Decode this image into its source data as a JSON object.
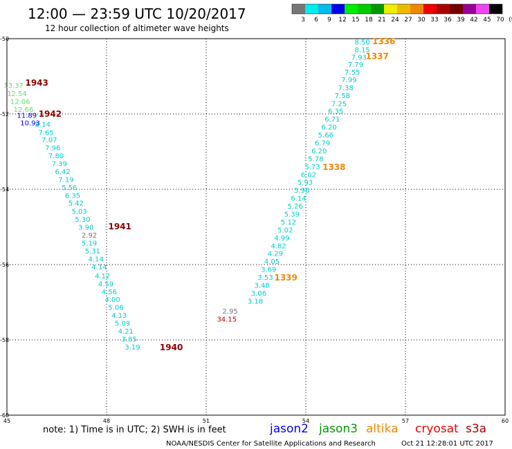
{
  "header": {
    "title": "12:00 — 23:59 UTC 10/20/2017",
    "subtitle": "12 hour collection of altimeter wave heights"
  },
  "colorbar": {
    "colors": [
      "#777777",
      "#00eeee",
      "#00bbee",
      "#0000ee",
      "#00ee00",
      "#00cc00",
      "#009900",
      "#eeee00",
      "#eebb00",
      "#ee8800",
      "#ee0000",
      "#aa0000",
      "#770000",
      "#990099",
      "#ee44ee",
      "#000000"
    ],
    "labels": [
      "3",
      "6",
      "9",
      "12",
      "15",
      "18",
      "21",
      "24",
      "27",
      "30",
      "33",
      "36",
      "39",
      "42",
      "45",
      "70",
      "(ft)"
    ]
  },
  "note": "note:  1) Time is in UTC; 2) SWH is in feet",
  "satellites": [
    {
      "label": "jason2",
      "color": "#0000ee"
    },
    {
      "label": "jason3",
      "color": "#009900"
    },
    {
      "label": "altika",
      "color": "#ee8800"
    },
    {
      "label": "cryosat",
      "color": "#ee0000"
    },
    {
      "label": "s3a",
      "color": "#aa0000"
    }
  ],
  "footer": {
    "credit": "NOAA/NESDIS Center for Satellite Applications and Research",
    "timestamp": "Oct 21 12:28:01 UTC 2017"
  },
  "chart_data": {
    "type": "scatter",
    "xlim": [
      45,
      60
    ],
    "ylim": [
      -60,
      -50
    ],
    "xticks": [
      "45",
      "48",
      "51",
      "54",
      "57",
      "60"
    ],
    "yticks": [
      "-50",
      "-52",
      "-54",
      "-56",
      "-58",
      "-60"
    ],
    "grid": true,
    "tracks": [
      {
        "color": "#00cccc",
        "points": [
          {
            "x": 46.08,
            "y": -52.28,
            "v": "8.14"
          },
          {
            "x": 46.18,
            "y": -52.5,
            "v": "7.65"
          },
          {
            "x": 46.28,
            "y": -52.7,
            "v": "7.07"
          },
          {
            "x": 46.38,
            "y": -52.91,
            "v": "7.96"
          },
          {
            "x": 46.48,
            "y": -53.12,
            "v": "7.80"
          },
          {
            "x": 46.58,
            "y": -53.33,
            "v": "7.39"
          },
          {
            "x": 46.68,
            "y": -53.54,
            "v": "6.42"
          },
          {
            "x": 46.78,
            "y": -53.75,
            "v": "7.19"
          },
          {
            "x": 46.88,
            "y": -53.96,
            "v": "5.56"
          },
          {
            "x": 46.98,
            "y": -54.17,
            "v": "6.35"
          },
          {
            "x": 47.08,
            "y": -54.38,
            "v": "5.42"
          },
          {
            "x": 47.18,
            "y": -54.6,
            "v": "5.03"
          },
          {
            "x": 47.28,
            "y": -54.81,
            "v": "5.30"
          },
          {
            "x": 47.38,
            "y": -55.02,
            "v": "3.90"
          },
          {
            "x": 47.48,
            "y": -55.44,
            "v": "5.19"
          },
          {
            "x": 47.58,
            "y": -55.65,
            "v": "5.31"
          },
          {
            "x": 47.68,
            "y": -55.86,
            "v": "4.14"
          },
          {
            "x": 47.78,
            "y": -56.07,
            "v": "4.14"
          },
          {
            "x": 47.88,
            "y": -56.31,
            "v": "4.12"
          },
          {
            "x": 47.98,
            "y": -56.52,
            "v": "4.59"
          },
          {
            "x": 48.08,
            "y": -56.73,
            "v": "4.56"
          },
          {
            "x": 48.18,
            "y": -56.94,
            "v": "4.00"
          },
          {
            "x": 48.28,
            "y": -57.15,
            "v": "5.06"
          },
          {
            "x": 48.38,
            "y": -57.36,
            "v": "4.13"
          },
          {
            "x": 48.48,
            "y": -57.57,
            "v": "5.09"
          },
          {
            "x": 48.58,
            "y": -57.78,
            "v": "4.21"
          },
          {
            "x": 48.68,
            "y": -57.99,
            "v": "3.85"
          },
          {
            "x": 48.78,
            "y": -58.2,
            "v": "3.19"
          }
        ]
      },
      {
        "color": "#00cccc",
        "points": [
          {
            "x": 55.7,
            "y": -50.1,
            "v": "8.50"
          },
          {
            "x": 55.7,
            "y": -50.3,
            "v": "8.15"
          },
          {
            "x": 55.6,
            "y": -50.5,
            "v": "7.93"
          },
          {
            "x": 55.5,
            "y": -50.7,
            "v": "7.79"
          },
          {
            "x": 55.4,
            "y": -50.9,
            "v": "7.55"
          },
          {
            "x": 55.3,
            "y": -51.1,
            "v": "7.99"
          },
          {
            "x": 55.2,
            "y": -51.31,
            "v": "7.38"
          },
          {
            "x": 55.1,
            "y": -51.52,
            "v": "7.58"
          },
          {
            "x": 55.0,
            "y": -51.73,
            "v": "7.25"
          },
          {
            "x": 54.9,
            "y": -51.94,
            "v": "6.35"
          },
          {
            "x": 54.8,
            "y": -52.15,
            "v": "6.71"
          },
          {
            "x": 54.7,
            "y": -52.36,
            "v": "6.20"
          },
          {
            "x": 54.6,
            "y": -52.57,
            "v": "5.66"
          },
          {
            "x": 54.5,
            "y": -52.78,
            "v": "6.79"
          },
          {
            "x": 54.4,
            "y": -52.99,
            "v": "6.20"
          },
          {
            "x": 54.3,
            "y": -53.2,
            "v": "5.78"
          },
          {
            "x": 54.2,
            "y": -53.41,
            "v": "5.73"
          },
          {
            "x": 54.08,
            "y": -53.62,
            "v": "6.02"
          },
          {
            "x": 53.98,
            "y": -53.83,
            "v": "5.93"
          },
          {
            "x": 53.88,
            "y": -54.04,
            "v": "5.96"
          },
          {
            "x": 53.78,
            "y": -54.25,
            "v": "6.14"
          },
          {
            "x": 53.68,
            "y": -54.46,
            "v": "5.26"
          },
          {
            "x": 53.58,
            "y": -54.67,
            "v": "5.39"
          },
          {
            "x": 53.48,
            "y": -54.88,
            "v": "5.12"
          },
          {
            "x": 53.38,
            "y": -55.09,
            "v": "5.02"
          },
          {
            "x": 53.28,
            "y": -55.3,
            "v": "4.99"
          },
          {
            "x": 53.18,
            "y": -55.51,
            "v": "4.82"
          },
          {
            "x": 53.08,
            "y": -55.72,
            "v": "4.29"
          },
          {
            "x": 52.98,
            "y": -55.93,
            "v": "4.05"
          },
          {
            "x": 52.88,
            "y": -56.14,
            "v": "3.69"
          },
          {
            "x": 52.78,
            "y": -56.35,
            "v": "3.53"
          },
          {
            "x": 52.68,
            "y": -56.56,
            "v": "3.48"
          },
          {
            "x": 52.58,
            "y": -56.77,
            "v": "3.06"
          },
          {
            "x": 52.48,
            "y": -56.98,
            "v": "3.18"
          }
        ]
      },
      {
        "color": "#66dd66",
        "points": [
          {
            "x": 45.2,
            "y": -51.25,
            "v": "13.37"
          },
          {
            "x": 45.3,
            "y": -51.47,
            "v": "12.54"
          },
          {
            "x": 45.4,
            "y": -51.68,
            "v": "12.06"
          },
          {
            "x": 45.5,
            "y": -51.89,
            "v": "12.66"
          }
        ]
      },
      {
        "color": "#0000ee",
        "points": [
          {
            "x": 45.6,
            "y": -52.05,
            "v": "11.89"
          },
          {
            "x": 45.7,
            "y": -52.25,
            "v": "10.93"
          }
        ]
      },
      {
        "color": "#777777",
        "points": [
          {
            "x": 47.48,
            "y": -55.23,
            "v": "2.92"
          },
          {
            "x": 51.72,
            "y": -57.25,
            "v": "2.95"
          }
        ]
      },
      {
        "color": "#aa0000",
        "points": [
          {
            "x": 51.62,
            "y": -57.46,
            "v": "34.15"
          }
        ]
      }
    ],
    "annotations": [
      {
        "text": "1943",
        "x": 45.9,
        "y": -51.17,
        "color": "#880000"
      },
      {
        "text": "1942",
        "x": 46.3,
        "y": -52.0,
        "color": "#880000"
      },
      {
        "text": "1941",
        "x": 48.4,
        "y": -54.99,
        "color": "#880000"
      },
      {
        "text": "1940",
        "x": 49.95,
        "y": -58.2,
        "color": "#880000"
      },
      {
        "text": "1336",
        "x": 56.35,
        "y": -50.07,
        "color": "#ee8800"
      },
      {
        "text": "1337",
        "x": 56.15,
        "y": -50.47,
        "color": "#ee8800"
      },
      {
        "text": "1338",
        "x": 54.85,
        "y": -53.41,
        "color": "#ee8800"
      },
      {
        "text": "1339",
        "x": 53.4,
        "y": -56.35,
        "color": "#ee8800"
      }
    ]
  }
}
